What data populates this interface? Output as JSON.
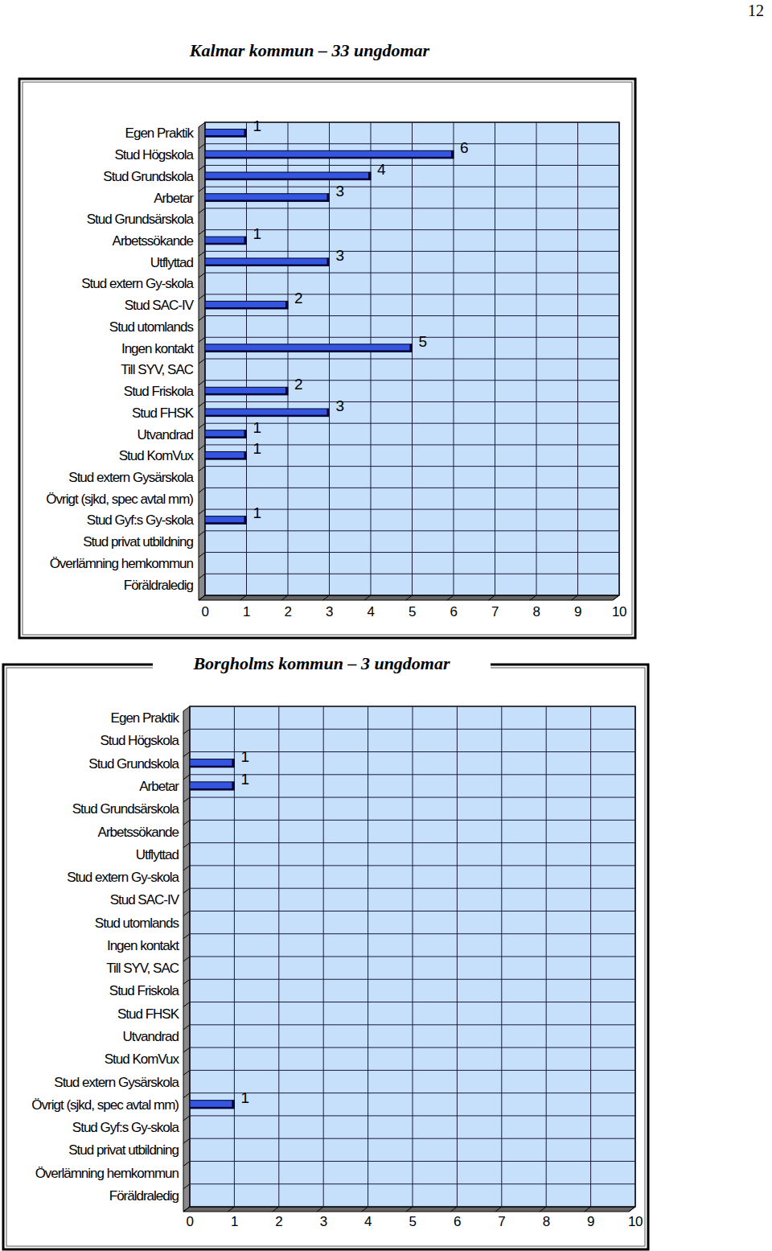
{
  "page_number": "12",
  "chart_data": [
    {
      "type": "bar",
      "orientation": "horizontal",
      "title": "Kalmar kommun – 33 ungdomar",
      "categories": [
        "Egen Praktik",
        "Stud Högskola",
        "Stud Grundskola",
        "Arbetar",
        "Stud Grundsärskola",
        "Arbetssökande",
        "Utflyttad",
        "Stud extern Gy-skola",
        "Stud SAC-IV",
        "Stud utomlands",
        "Ingen kontakt",
        "Till SYV, SAC",
        "Stud Friskola",
        "Stud FHSK",
        "Utvandrad",
        "Stud KomVux",
        "Stud extern Gysärskola",
        "Övrigt (sjkd, spec avtal mm)",
        "Stud Gyf:s Gy-skola",
        "Stud privat utbildning",
        "Överlämning hemkommun",
        "Föräldraledig"
      ],
      "values": [
        1,
        6,
        4,
        3,
        0,
        1,
        3,
        0,
        2,
        0,
        5,
        0,
        2,
        3,
        1,
        1,
        0,
        0,
        1,
        0,
        0,
        0
      ],
      "color": "#3355e0",
      "xlim": [
        0,
        10
      ],
      "xticks": [
        0,
        1,
        2,
        3,
        4,
        5,
        6,
        7,
        8,
        9,
        10
      ],
      "grid": true,
      "data_labels": true
    },
    {
      "type": "bar",
      "orientation": "horizontal",
      "title": "Borgholms kommun – 3 ungdomar",
      "categories": [
        "Egen Praktik",
        "Stud Högskola",
        "Stud Grundskola",
        "Arbetar",
        "Stud Grundsärskola",
        "Arbetssökande",
        "Utflyttad",
        "Stud extern Gy-skola",
        "Stud SAC-IV",
        "Stud utomlands",
        "Ingen kontakt",
        "Till SYV, SAC",
        "Stud Friskola",
        "Stud FHSK",
        "Utvandrad",
        "Stud KomVux",
        "Stud extern Gysärskola",
        "Övrigt (sjkd, spec avtal mm)",
        "Stud Gyf:s Gy-skola",
        "Stud privat utbildning",
        "Överlämning hemkommun",
        "Föräldraledig"
      ],
      "values": [
        0,
        0,
        1,
        1,
        0,
        0,
        0,
        0,
        0,
        0,
        0,
        0,
        0,
        0,
        0,
        0,
        0,
        1,
        0,
        0,
        0,
        0
      ],
      "color": "#3355e0",
      "xlim": [
        0,
        10
      ],
      "xticks": [
        0,
        1,
        2,
        3,
        4,
        5,
        6,
        7,
        8,
        9,
        10
      ],
      "grid": true,
      "data_labels": true
    }
  ]
}
